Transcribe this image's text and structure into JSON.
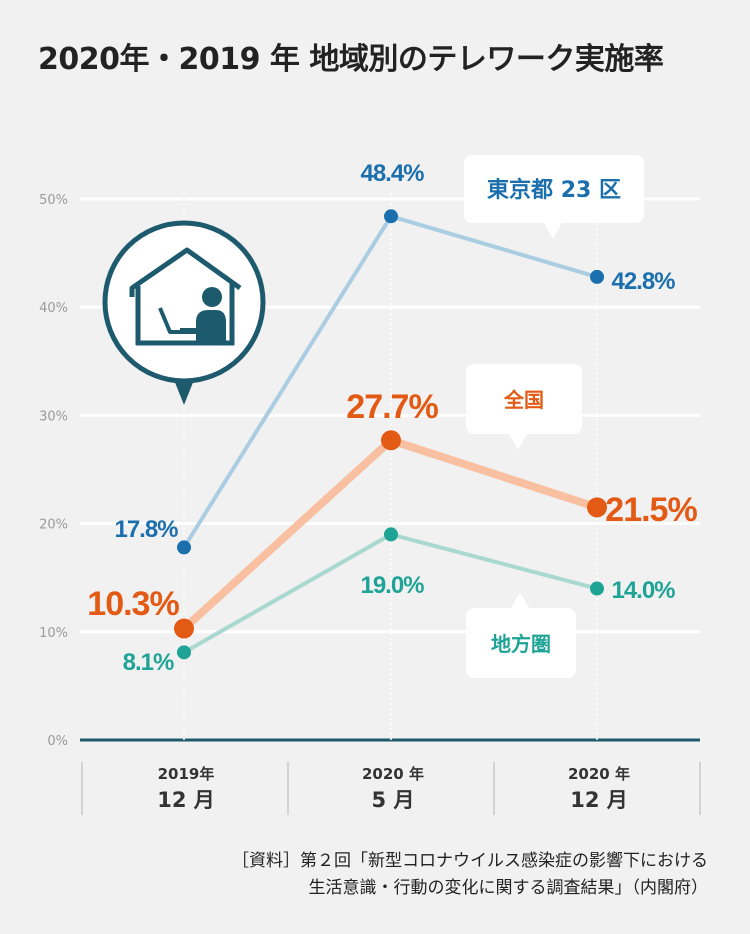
{
  "title": "2020年・2019 年 地域別のテレワーク実施率",
  "source": {
    "line1": "［資料］第２回「新型コロナウイルス感染症の影響下における",
    "line2": "生活意識・行動の変化に関する調査結果」（内閣府）"
  },
  "chart_data": {
    "type": "line",
    "title": "2020年・2019 年 地域別のテレワーク実施率",
    "x_periods": [
      {
        "year": "2019年",
        "month": "12 月"
      },
      {
        "year": "2020 年",
        "month": "5 月"
      },
      {
        "year": "2020 年",
        "month": "12 月"
      }
    ],
    "yticks": [
      "0%",
      "10%",
      "20%",
      "30%",
      "40%",
      "50%"
    ],
    "ylim": [
      0,
      50
    ],
    "grid": true,
    "series": [
      {
        "name": "東京都 23 区",
        "values": [
          17.8,
          48.4,
          42.8
        ],
        "labels": [
          "17.8%",
          "48.4%",
          "42.8%"
        ],
        "color": "#aacde2",
        "marker_color": "#1b6fad",
        "label_color": "#1b6fad"
      },
      {
        "name": "全国",
        "values": [
          10.3,
          27.7,
          21.5
        ],
        "labels": [
          "10.3%",
          "27.7%",
          "21.5%"
        ],
        "color": "#f8c0a0",
        "marker_color": "#e35a14",
        "label_color": "#e35a14"
      },
      {
        "name": "地方圏",
        "values": [
          8.1,
          19.0,
          14.0
        ],
        "labels": [
          "8.1%",
          "19.0%",
          "14.0%"
        ],
        "color": "#a8d8cf",
        "marker_color": "#1fa396",
        "label_color": "#1fa396"
      }
    ]
  },
  "icon": {
    "name": "telework-home-icon",
    "color": "#1d5a6e"
  }
}
